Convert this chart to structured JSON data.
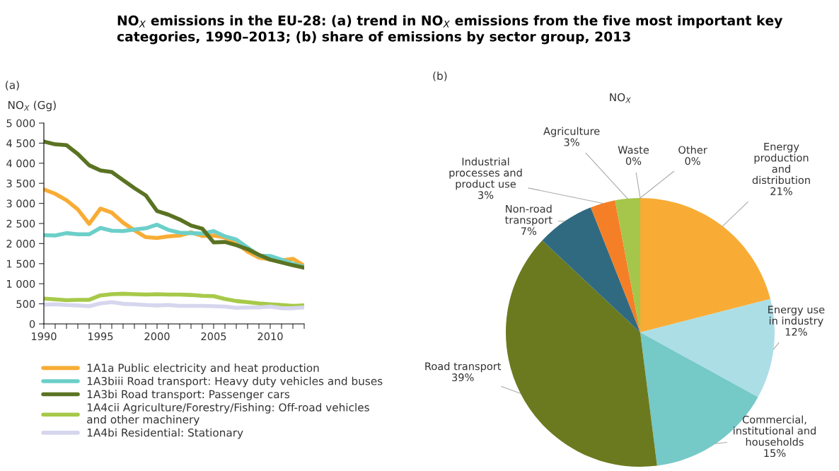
{
  "chart_data": [
    {
      "type": "line",
      "title": "NO$_{X}$ emissions in the EU-28: (a) trend in NO$_{X}$ emissions from the five most important key\ncategories, 1990–2013; (b) share of emissions by sector group, 2013",
      "ylabel": "NO$_{X}$ (Gg)",
      "annotations": [
        "(a)"
      ],
      "x": [
        1990,
        1991,
        1992,
        1993,
        1994,
        1995,
        1996,
        1997,
        1998,
        1999,
        2000,
        2001,
        2002,
        2003,
        2004,
        2005,
        2006,
        2007,
        2008,
        2009,
        2010,
        2011,
        2012,
        2013
      ],
      "series": [
        {
          "name": "1A1a Public electricity and heat production",
          "color": "#f8ac35",
          "values": [
            3350,
            3240,
            3080,
            2850,
            2490,
            2870,
            2770,
            2520,
            2330,
            2160,
            2140,
            2180,
            2200,
            2280,
            2190,
            2200,
            2150,
            2010,
            1800,
            1650,
            1600,
            1580,
            1620,
            1450
          ]
        },
        {
          "name": "1A3biii Road transport: Heavy duty vehicles and buses",
          "color": "#6ccfc9",
          "values": [
            2210,
            2200,
            2260,
            2230,
            2230,
            2390,
            2320,
            2310,
            2350,
            2380,
            2470,
            2340,
            2270,
            2260,
            2250,
            2310,
            2180,
            2100,
            1900,
            1700,
            1690,
            1600,
            1500,
            1420
          ]
        },
        {
          "name": "1A3bi Road transport: Passenger cars",
          "color": "#5a7323",
          "values": [
            4540,
            4470,
            4450,
            4230,
            3950,
            3820,
            3780,
            3580,
            3380,
            3200,
            2810,
            2720,
            2600,
            2450,
            2370,
            2030,
            2040,
            1960,
            1860,
            1720,
            1600,
            1530,
            1460,
            1400
          ]
        },
        {
          "name": "1A4cii Agriculture/Forestry/Fishing: Off-road vehicles\nand other machinery",
          "color": "#a7c94a",
          "values": [
            630,
            610,
            590,
            600,
            600,
            710,
            740,
            750,
            740,
            730,
            740,
            730,
            730,
            720,
            700,
            690,
            620,
            570,
            540,
            510,
            490,
            470,
            450,
            460
          ]
        },
        {
          "name": "1A4bi Residential: Stationary",
          "color": "#d6d6ee",
          "values": [
            480,
            490,
            470,
            460,
            440,
            510,
            540,
            500,
            490,
            470,
            460,
            470,
            450,
            450,
            450,
            440,
            430,
            400,
            410,
            410,
            430,
            390,
            390,
            410
          ]
        }
      ],
      "xlim": [
        1990,
        2013
      ],
      "ylim": [
        0,
        5000
      ],
      "xticks": [
        1990,
        {
          "value": 1991,
          "label": null
        },
        {
          "value": 1992,
          "label": null
        },
        {
          "value": 1993,
          "label": null
        },
        {
          "value": 1994,
          "label": null
        },
        1995,
        {
          "value": 1996,
          "label": null
        },
        {
          "value": 1997,
          "label": null
        },
        {
          "value": 1998,
          "label": null
        },
        {
          "value": 1999,
          "label": null
        },
        2000,
        {
          "value": 2001,
          "label": null
        },
        {
          "value": 2002,
          "label": null
        },
        {
          "value": 2003,
          "label": null
        },
        {
          "value": 2004,
          "label": null
        },
        2005,
        {
          "value": 2006,
          "label": null
        },
        {
          "value": 2007,
          "label": null
        },
        {
          "value": 2008,
          "label": null
        },
        {
          "value": 2009,
          "label": null
        },
        2010,
        {
          "value": 2011,
          "label": null
        },
        {
          "value": 2012,
          "label": null
        },
        {
          "value": 2013,
          "label": null
        }
      ],
      "yticks": [
        0,
        {
          "value": 500,
          "label": "500"
        },
        {
          "value": 1000,
          "label": "1 000"
        },
        {
          "value": 1500,
          "label": "1 500"
        },
        {
          "value": 2000,
          "label": "2 000"
        },
        {
          "value": 2500,
          "label": "2 500"
        },
        {
          "value": 3000,
          "label": "3 000"
        },
        {
          "value": 3500,
          "label": "3 500"
        },
        {
          "value": 4000,
          "label": "4 000"
        },
        {
          "value": 4500,
          "label": "4 500"
        },
        {
          "value": 5000,
          "label": "5 000"
        }
      ],
      "grid": false,
      "legend": "bottom",
      "marker": "none",
      "line_style": "solid"
    },
    {
      "type": "pie",
      "title": "NO$_{X}$",
      "annotations": [
        "(b)"
      ],
      "categories": [
        "Energy\nproduction\nand\ndistribution",
        "Energy use\nin industry",
        "Commercial,\ninstitutional and\nhouseholds",
        "Road transport",
        "Non-road\ntransport",
        "Industrial\nprocesses and\nproduct use",
        "Agriculture",
        "Waste",
        "Other"
      ],
      "values": [
        21,
        12,
        15,
        39,
        7,
        3,
        3,
        0,
        0
      ],
      "value_labels": [
        "21%",
        "12%",
        "15%",
        "39%",
        "7%",
        "3%",
        "3%",
        "0%",
        "0%"
      ],
      "colors": [
        "#f8ac35",
        "#acdee6",
        "#75c9c7",
        "#6b7a1f",
        "#306a80",
        "#f47f27",
        "#a5c64a",
        "#8a8a8a",
        "#b0b0b0"
      ]
    }
  ]
}
